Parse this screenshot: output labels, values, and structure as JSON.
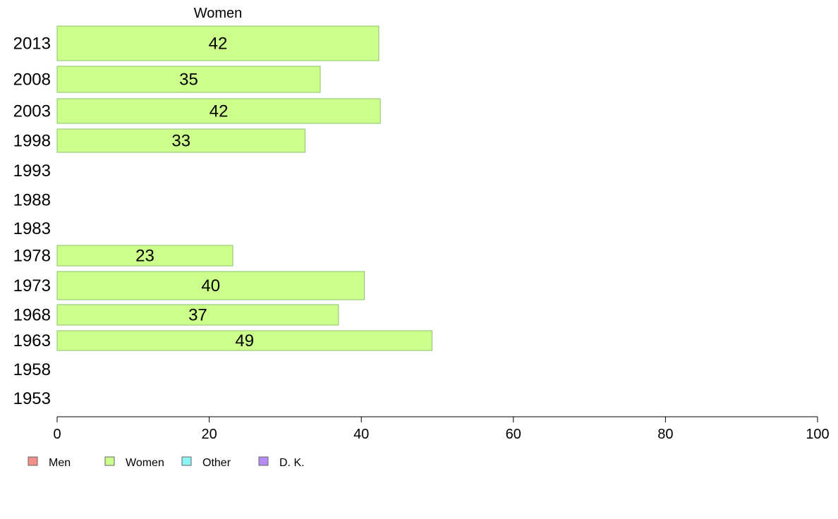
{
  "chart_data": {
    "type": "bar",
    "orientation": "horizontal",
    "title": "Women",
    "categories": [
      "2013",
      "2008",
      "2003",
      "1998",
      "1993",
      "1988",
      "1983",
      "1978",
      "1973",
      "1968",
      "1963",
      "1958",
      "1953"
    ],
    "series": [
      {
        "name": "Women",
        "values": [
          42.3,
          34.6,
          42.5,
          32.6,
          null,
          null,
          null,
          23.1,
          40.4,
          37.0,
          49.3,
          null,
          null
        ],
        "labels": [
          "42",
          "35",
          "42",
          "33",
          "",
          "",
          "",
          "23",
          "40",
          "37",
          "49",
          "",
          ""
        ]
      }
    ],
    "xlim": [
      0,
      100
    ],
    "xticks": [
      "0",
      "20",
      "40",
      "60",
      "80",
      "100"
    ],
    "grid": false,
    "legend_position": "bottom-left",
    "legend": [
      {
        "name": "Men",
        "color": "#f4908a"
      },
      {
        "name": "Women",
        "color": "#ccff8c"
      },
      {
        "name": "Other",
        "color": "#8cf4f4"
      },
      {
        "name": "D. K.",
        "color": "#b68cf4"
      }
    ],
    "bar_color": "#ccff8c",
    "bar_stroke": "#8cc06c"
  }
}
